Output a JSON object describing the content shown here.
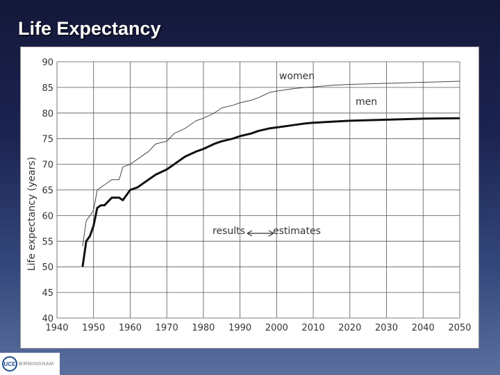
{
  "slide": {
    "title": "Life Expectancy",
    "logo_mark": "UCE",
    "logo_text": "BIRMINGHAM"
  },
  "chart_data": {
    "type": "line",
    "title": "",
    "xlabel": "",
    "ylabel": "Life expectancy (years)",
    "xlim": [
      1940,
      2050
    ],
    "ylim": [
      40,
      90
    ],
    "xticks": [
      1940,
      1950,
      1960,
      1970,
      1980,
      1990,
      2000,
      2010,
      2020,
      2030,
      2040,
      2050
    ],
    "yticks": [
      40,
      45,
      50,
      55,
      60,
      65,
      70,
      75,
      80,
      85,
      90
    ],
    "grid": true,
    "annotations": {
      "women_label": "women",
      "men_label": "men",
      "results_label": "results",
      "estimates_label": "estimates"
    },
    "series": [
      {
        "name": "women",
        "style": "thin",
        "x": [
          1947,
          1948,
          1949,
          1950,
          1951,
          1952,
          1953,
          1955,
          1957,
          1958,
          1960,
          1962,
          1965,
          1967,
          1970,
          1972,
          1975,
          1978,
          1980,
          1983,
          1985,
          1988,
          1990,
          1993,
          1995,
          1998,
          2000,
          2003,
          2005,
          2008,
          2010,
          2015,
          2020,
          2030,
          2040,
          2050
        ],
        "values": [
          54,
          59,
          60,
          61,
          65,
          65.5,
          66,
          67,
          67,
          69.5,
          70,
          71,
          72.5,
          74,
          74.5,
          76,
          77,
          78.5,
          79,
          80,
          81,
          81.5,
          82,
          82.5,
          83,
          84,
          84.3,
          84.6,
          84.8,
          85,
          85.1,
          85.4,
          85.6,
          85.8,
          86,
          86.2
        ]
      },
      {
        "name": "men",
        "style": "thick",
        "x": [
          1947,
          1948,
          1949,
          1950,
          1951,
          1952,
          1953,
          1955,
          1957,
          1958,
          1960,
          1962,
          1965,
          1967,
          1970,
          1972,
          1975,
          1978,
          1980,
          1983,
          1985,
          1988,
          1990,
          1993,
          1995,
          1998,
          2000,
          2003,
          2005,
          2008,
          2010,
          2015,
          2020,
          2030,
          2040,
          2050
        ],
        "values": [
          50,
          55,
          56,
          58,
          61.5,
          62,
          62,
          63.5,
          63.5,
          63,
          65,
          65.5,
          67,
          68,
          69,
          70,
          71.5,
          72.5,
          73,
          74,
          74.5,
          75,
          75.5,
          76,
          76.5,
          77,
          77.2,
          77.5,
          77.7,
          78,
          78.1,
          78.3,
          78.5,
          78.7,
          78.9,
          79
        ]
      }
    ]
  }
}
